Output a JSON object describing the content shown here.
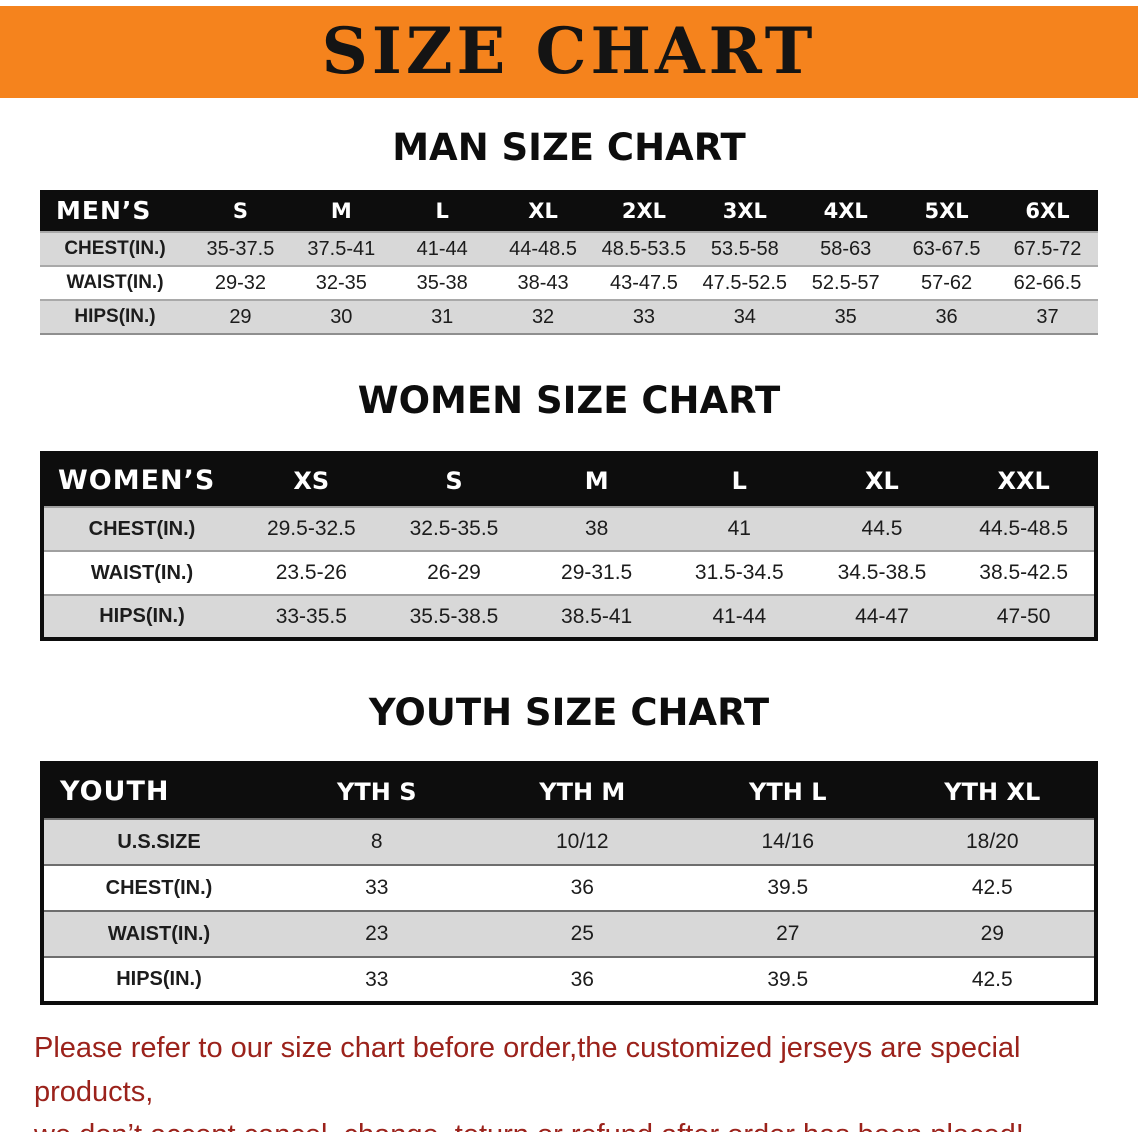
{
  "banner": {
    "title": "SIZE CHART",
    "bg_color": "#F5831D",
    "text_color": "#141414"
  },
  "colors": {
    "table_header_bg": "#0D0D0D",
    "table_header_text": "#FFFFFF",
    "row_stripe": "#D8D8D8",
    "footer_text": "#9B221B"
  },
  "footer": {
    "line1": "Please refer to our size chart before order,the customized jerseys are special products,",
    "line2": "we don’t accept cancel, change, teturn or refund after order has been placed!"
  },
  "chart_data": [
    {
      "type": "table",
      "title": "MAN SIZE CHART",
      "columns": [
        "MEN’S",
        "S",
        "M",
        "L",
        "XL",
        "2XL",
        "3XL",
        "4XL",
        "5XL",
        "6XL"
      ],
      "rows": [
        [
          "CHEST(IN.)",
          "35-37.5",
          "37.5-41",
          "41-44",
          "44-48.5",
          "48.5-53.5",
          "53.5-58",
          "58-63",
          "63-67.5",
          "67.5-72"
        ],
        [
          "WAIST(IN.)",
          "29-32",
          "32-35",
          "35-38",
          "38-43",
          "43-47.5",
          "47.5-52.5",
          "52.5-57",
          "57-62",
          "62-66.5"
        ],
        [
          "HIPS(IN.)",
          "29",
          "30",
          "31",
          "32",
          "33",
          "34",
          "35",
          "36",
          "37"
        ]
      ]
    },
    {
      "type": "table",
      "title": "WOMEN SIZE CHART",
      "columns": [
        "WOMEN’S",
        "XS",
        "S",
        "M",
        "L",
        "XL",
        "XXL"
      ],
      "rows": [
        [
          "CHEST(IN.)",
          "29.5-32.5",
          "32.5-35.5",
          "38",
          "41",
          "44.5",
          "44.5-48.5"
        ],
        [
          "WAIST(IN.)",
          "23.5-26",
          "26-29",
          "29-31.5",
          "31.5-34.5",
          "34.5-38.5",
          "38.5-42.5"
        ],
        [
          "HIPS(IN.)",
          "33-35.5",
          "35.5-38.5",
          "38.5-41",
          "41-44",
          "44-47",
          "47-50"
        ]
      ]
    },
    {
      "type": "table",
      "title": "YOUTH SIZE CHART",
      "columns": [
        "YOUTH",
        "YTH S",
        "YTH M",
        "YTH L",
        "YTH XL"
      ],
      "rows": [
        [
          "U.S.SIZE",
          "8",
          "10/12",
          "14/16",
          "18/20"
        ],
        [
          "CHEST(IN.)",
          "33",
          "36",
          "39.5",
          "42.5"
        ],
        [
          "WAIST(IN.)",
          "23",
          "25",
          "27",
          "29"
        ],
        [
          "HIPS(IN.)",
          "33",
          "36",
          "39.5",
          "42.5"
        ]
      ]
    }
  ]
}
